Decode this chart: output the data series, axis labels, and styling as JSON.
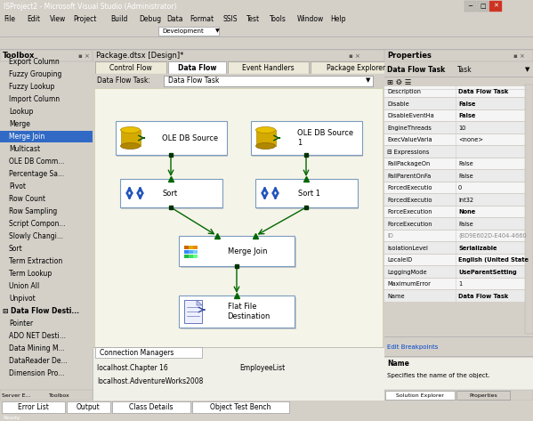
{
  "title": "ISProject2 - Microsoft Visual Studio (Administrator)",
  "bg_color": "#d4d0c8",
  "titlebar_color": "#1e3a7a",
  "menu_bg": "#d4d0c8",
  "canvas_bg": "#f5f4e8",
  "toolbox_bg": "#f0efe8",
  "props_bg": "#f0efe8",
  "node_fill": "#ffffff",
  "node_border": "#7a9bbf",
  "arrow_color": "#006600",
  "dot_color": "#003300",
  "tab_selected_bg": "#ffffff",
  "tab_unselected_bg": "#ece9d8",
  "highlight_blue": "#316ac5",
  "toolbox_items": [
    [
      "Export Column",
      false
    ],
    [
      "Fuzzy Grouping",
      false
    ],
    [
      "Fuzzy Lookup",
      false
    ],
    [
      "Import Column",
      false
    ],
    [
      "Lookup",
      false
    ],
    [
      "Merge",
      false
    ],
    [
      "Merge Join",
      true
    ],
    [
      "Multicast",
      false
    ],
    [
      "OLE DB Comm...",
      false
    ],
    [
      "Percentage Sa...",
      false
    ],
    [
      "Pivot",
      false
    ],
    [
      "Row Count",
      false
    ],
    [
      "Row Sampling",
      false
    ],
    [
      "Script Compon...",
      false
    ],
    [
      "Slowly Changi...",
      false
    ],
    [
      "Sort",
      false
    ],
    [
      "Term Extraction",
      false
    ],
    [
      "Term Lookup",
      false
    ],
    [
      "Union All",
      false
    ],
    [
      "Unpivot",
      false
    ],
    [
      "Data Flow Desti...",
      true
    ],
    [
      "Pointer",
      false
    ],
    [
      "ADO NET Desti...",
      false
    ],
    [
      "Data Mining M...",
      false
    ],
    [
      "DataReader De...",
      false
    ],
    [
      "Dimension Pro...",
      false
    ]
  ],
  "properties_items": [
    [
      "Description",
      "Data Flow Task",
      true
    ],
    [
      "Disable",
      "False",
      true
    ],
    [
      "DisableEventHa",
      "False",
      true
    ],
    [
      "EngineThreads",
      "10",
      false
    ],
    [
      "ExecValueVaria",
      "<none>",
      false
    ],
    [
      "Expressions",
      "",
      false
    ],
    [
      "FailPackageOn",
      "False",
      false
    ],
    [
      "FailParentOnFa",
      "False",
      false
    ],
    [
      "ForcedExecutio",
      "0",
      false
    ],
    [
      "ForcedExecutio",
      "Int32",
      false
    ],
    [
      "ForceExecution",
      "None",
      true
    ],
    [
      "ForceExecution",
      "False",
      false
    ],
    [
      "ID",
      "(BD9E602D-E404-4660",
      false
    ],
    [
      "IsolationLevel",
      "Serializable",
      true
    ],
    [
      "LocaleID",
      "English (United State",
      true
    ],
    [
      "LoggingMode",
      "UseParentSetting",
      true
    ],
    [
      "MaximumError",
      "1",
      false
    ],
    [
      "Name",
      "Data Flow Task",
      true
    ]
  ],
  "menu_items": [
    "File",
    "Edit",
    "View",
    "Project",
    "Build",
    "Debug",
    "Data",
    "Format",
    "SSIS",
    "Test",
    "Tools",
    "Window",
    "Help"
  ],
  "tabs": [
    [
      "Control Flow",
      false
    ],
    [
      "Data Flow",
      true
    ],
    [
      "Event Handlers",
      false
    ],
    [
      "Package Explorer",
      false
    ]
  ],
  "bottom_tabs": [
    "Error List",
    "Output",
    "Class Details",
    "Object Test Bench"
  ],
  "conn_managers": [
    "localhost.Chapter 16",
    "localhost.AdventureWorks2008"
  ],
  "employee_list": "EmployeeList"
}
